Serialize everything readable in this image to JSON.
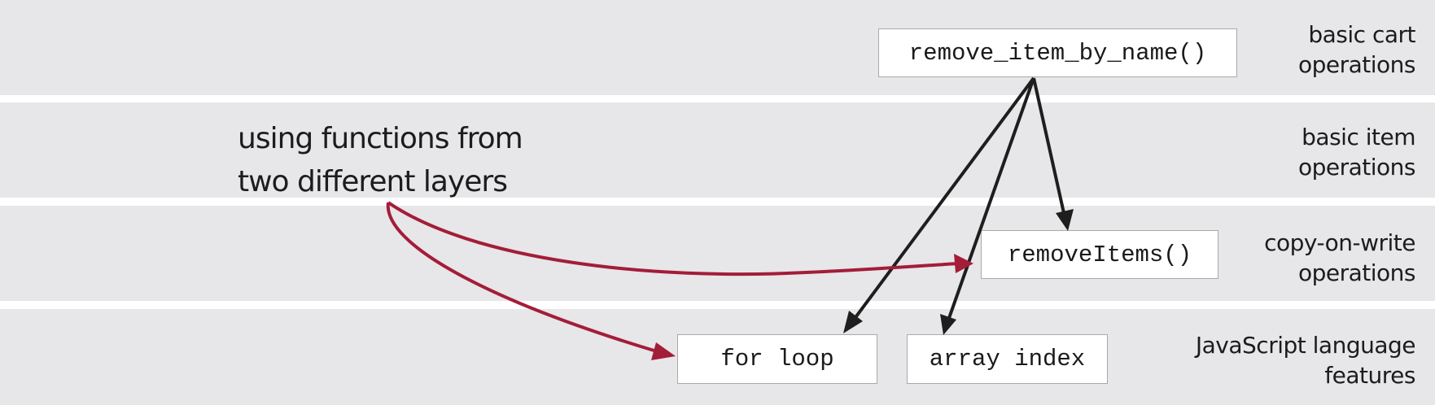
{
  "layers": [
    {
      "id": "cart",
      "label_lines": [
        "basic cart",
        "operations"
      ]
    },
    {
      "id": "item",
      "label_lines": [
        "basic item",
        "operations"
      ]
    },
    {
      "id": "cow",
      "label_lines": [
        "copy-on-write",
        "operations"
      ]
    },
    {
      "id": "js",
      "label_lines": [
        "JavaScript language",
        "features"
      ]
    }
  ],
  "functions": {
    "remove_item_by_name": "remove_item_by_name()",
    "removeItems": "removeItems()",
    "for_loop": "for loop",
    "array_index": "array index"
  },
  "annotation_lines": [
    "using functions from",
    "two different layers"
  ],
  "colors": {
    "band": "#e7e6e9",
    "call_arrow": "#1e1e1e",
    "highlight_arrow": "#a31d38"
  }
}
